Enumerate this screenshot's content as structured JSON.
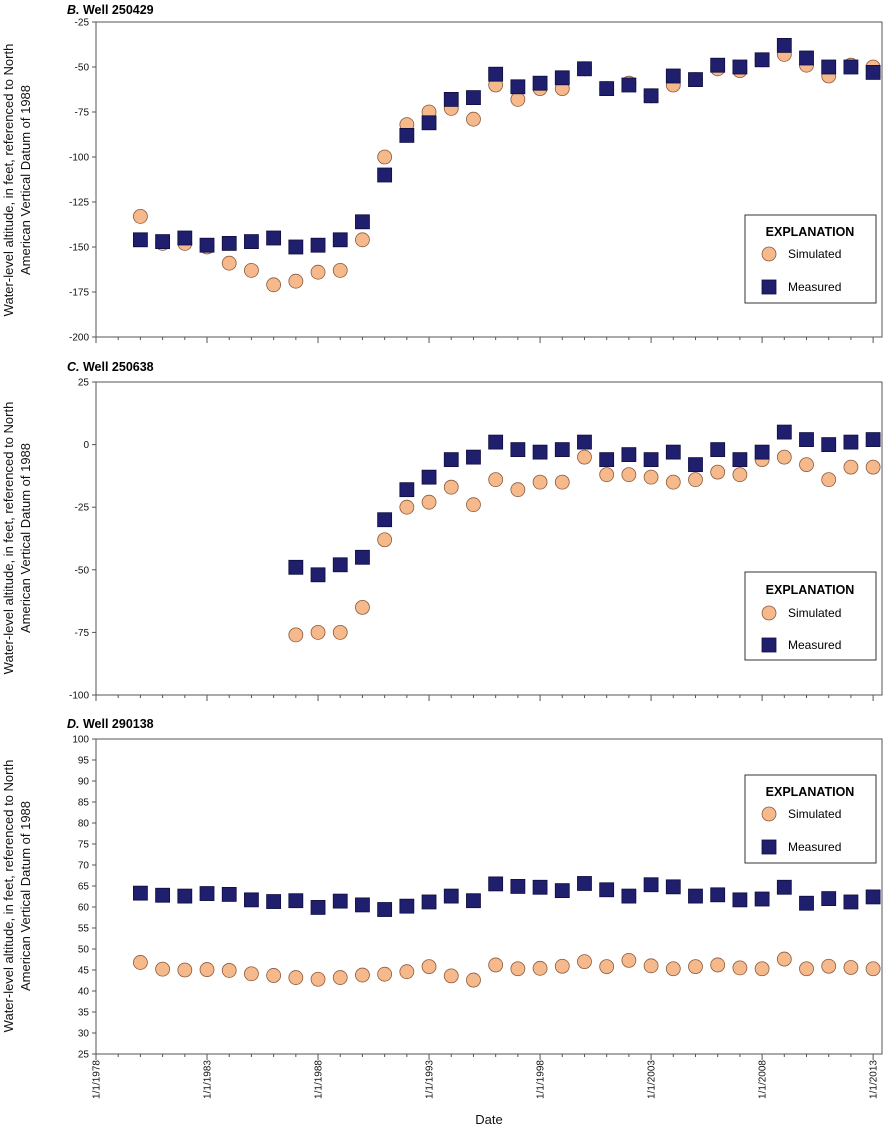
{
  "x_axis": {
    "label": "Date",
    "ticks": [
      {
        "label": "1/1/1978",
        "value": 1978
      },
      {
        "label": "1/1/1983",
        "value": 1983
      },
      {
        "label": "1/1/1988",
        "value": 1988
      },
      {
        "label": "1/1/1993",
        "value": 1993
      },
      {
        "label": "1/1/1998",
        "value": 1998
      },
      {
        "label": "1/1/2003",
        "value": 2003
      },
      {
        "label": "1/1/2008",
        "value": 2008
      },
      {
        "label": "1/1/2013",
        "value": 2013
      }
    ],
    "range": [
      1978,
      2013.4
    ]
  },
  "legend": {
    "title": "EXPLANATION",
    "simulated_label": "Simulated",
    "measured_label": "Measured"
  },
  "colors": {
    "simulated_fill": "#F6B98B",
    "simulated_edge": "#8A5A3C",
    "measured_fill": "#1F1F6E",
    "measured_edge": "#0E0E3E"
  },
  "chart_data": [
    {
      "type": "scatter",
      "title": "Well 250429",
      "panel_letter": "B.",
      "ylabel_line1": "Water-level altitude, in feet, referenced to North",
      "ylabel_line2": "American Vertical Datum of 1988",
      "ylim": [
        -200,
        -25
      ],
      "yticks": [
        -200,
        -175,
        -150,
        -125,
        -100,
        -75,
        -50,
        -25
      ],
      "series": [
        {
          "name": "Simulated",
          "x": [
            1980,
            1981,
            1982,
            1983,
            1984,
            1985,
            1986,
            1987,
            1988,
            1989,
            1990,
            1991,
            1992,
            1993,
            1994,
            1995,
            1996,
            1997,
            1998,
            1999,
            2000,
            2001,
            2002,
            2003,
            2004,
            2005,
            2006,
            2007,
            2008,
            2009,
            2010,
            2011,
            2012,
            2013
          ],
          "y": [
            -133,
            -148,
            -148,
            -150,
            -159,
            -163,
            -171,
            -169,
            -164,
            -163,
            -146,
            -100,
            -82,
            -75,
            -73,
            -79,
            -60,
            -68,
            -62,
            -62,
            -51,
            -62,
            -59,
            -66,
            -60,
            -57,
            -51,
            -52,
            -46,
            -43,
            -49,
            -55,
            -49,
            -50
          ]
        },
        {
          "name": "Measured",
          "x": [
            1980,
            1981,
            1982,
            1983,
            1984,
            1985,
            1986,
            1987,
            1988,
            1989,
            1990,
            1991,
            1992,
            1993,
            1994,
            1995,
            1996,
            1997,
            1998,
            1999,
            2000,
            2001,
            2002,
            2003,
            2004,
            2005,
            2006,
            2007,
            2008,
            2009,
            2010,
            2011,
            2012,
            2013
          ],
          "y": [
            -146,
            -147,
            -145,
            -149,
            -148,
            -147,
            -145,
            -150,
            -149,
            -146,
            -136,
            -110,
            -88,
            -81,
            -68,
            -67,
            -54,
            -61,
            -59,
            -56,
            -51,
            -62,
            -60,
            -66,
            -55,
            -57,
            -49,
            -50,
            -46,
            -38,
            -45,
            -50,
            -50,
            -53
          ]
        }
      ],
      "legend_entries": [
        "Simulated",
        "Measured"
      ]
    },
    {
      "type": "scatter",
      "title": "Well 250638",
      "panel_letter": "C.",
      "ylabel_line1": "Water-level altitude, in feet, referenced to North",
      "ylabel_line2": "American Vertical Datum of 1988",
      "ylim": [
        -100,
        25
      ],
      "yticks": [
        -100,
        -75,
        -50,
        -25,
        0,
        25
      ],
      "series": [
        {
          "name": "Simulated",
          "x": [
            1987,
            1988,
            1989,
            1990,
            1991,
            1992,
            1993,
            1994,
            1995,
            1996,
            1997,
            1998,
            1999,
            2000,
            2001,
            2002,
            2003,
            2004,
            2005,
            2006,
            2007,
            2008,
            2009,
            2010,
            2011,
            2012,
            2013
          ],
          "y": [
            -76,
            -75,
            -75,
            -65,
            -38,
            -25,
            -23,
            -17,
            -24,
            -14,
            -18,
            -15,
            -15,
            -5,
            -12,
            -12,
            -13,
            -15,
            -14,
            -11,
            -12,
            -6,
            -5,
            -8,
            -14,
            -9,
            -9
          ]
        },
        {
          "name": "Measured",
          "x": [
            1987,
            1988,
            1989,
            1990,
            1991,
            1992,
            1993,
            1994,
            1995,
            1996,
            1997,
            1998,
            1999,
            2000,
            2001,
            2002,
            2003,
            2004,
            2005,
            2006,
            2007,
            2008,
            2009,
            2010,
            2011,
            2012,
            2013
          ],
          "y": [
            -49,
            -52,
            -48,
            -45,
            -30,
            -18,
            -13,
            -6,
            -5,
            1,
            -2,
            -3,
            -2,
            1,
            -6,
            -4,
            -6,
            -3,
            -8,
            -2,
            -6,
            -3,
            5,
            2,
            0,
            1,
            2
          ]
        }
      ],
      "legend_entries": [
        "Simulated",
        "Measured"
      ]
    },
    {
      "type": "scatter",
      "title": "Well 290138",
      "panel_letter": "D.",
      "ylabel_line1": "Water-level altitude, in feet, referenced to North",
      "ylabel_line2": "American Vertical Datum of 1988",
      "ylim": [
        25,
        100
      ],
      "yticks": [
        25,
        30,
        35,
        40,
        45,
        50,
        55,
        60,
        65,
        70,
        75,
        80,
        85,
        90,
        95,
        100
      ],
      "series": [
        {
          "name": "Simulated",
          "x": [
            1980,
            1981,
            1982,
            1983,
            1984,
            1985,
            1986,
            1987,
            1988,
            1989,
            1990,
            1991,
            1992,
            1993,
            1994,
            1995,
            1996,
            1997,
            1998,
            1999,
            2000,
            2001,
            2002,
            2003,
            2004,
            2005,
            2006,
            2007,
            2008,
            2009,
            2010,
            2011,
            2012,
            2013
          ],
          "y": [
            46.8,
            45.2,
            45.0,
            45.1,
            44.9,
            44.1,
            43.7,
            43.2,
            42.8,
            43.2,
            43.8,
            44.0,
            44.6,
            45.8,
            43.6,
            42.6,
            46.2,
            45.3,
            45.4,
            45.9,
            47.0,
            45.8,
            47.3,
            46.0,
            45.3,
            45.8,
            46.2,
            45.5,
            45.3,
            47.6,
            45.3,
            45.9,
            45.6,
            45.3
          ]
        },
        {
          "name": "Measured",
          "x": [
            1980,
            1981,
            1982,
            1983,
            1984,
            1985,
            1986,
            1987,
            1988,
            1989,
            1990,
            1991,
            1992,
            1993,
            1994,
            1995,
            1996,
            1997,
            1998,
            1999,
            2000,
            2001,
            2002,
            2003,
            2004,
            2005,
            2006,
            2007,
            2008,
            2009,
            2010,
            2011,
            2012,
            2013
          ],
          "y": [
            63.3,
            62.8,
            62.6,
            63.2,
            63.0,
            61.7,
            61.3,
            61.5,
            59.9,
            61.4,
            60.5,
            59.4,
            60.2,
            61.2,
            62.6,
            61.5,
            65.5,
            64.9,
            64.7,
            63.9,
            65.6,
            64.1,
            62.6,
            65.3,
            64.8,
            62.6,
            62.9,
            61.7,
            61.9,
            64.7,
            60.9,
            62.0,
            61.2,
            62.4
          ]
        }
      ],
      "legend_entries": [
        "Simulated",
        "Measured"
      ]
    }
  ]
}
